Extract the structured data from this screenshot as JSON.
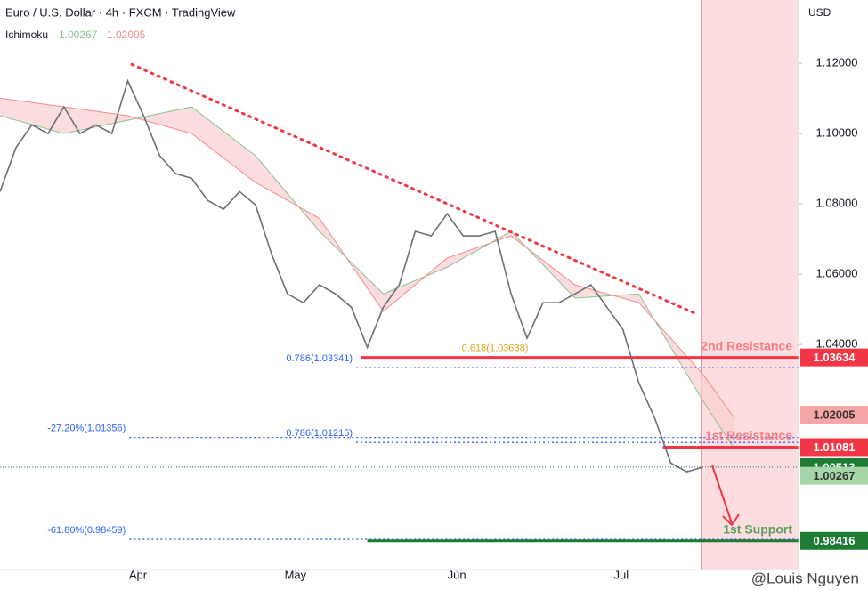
{
  "chart_data": {
    "type": "line",
    "title": "Euro / U.S. Dollar · 4h · FXCM · TradingView",
    "indicator": {
      "name": "Ichimoku",
      "values": [
        1.00267,
        1.02005
      ],
      "colors": [
        "#8bc28e",
        "#f28b8b"
      ]
    },
    "currency": "USD",
    "watermark": "@Louis Nguyen",
    "xlim": [
      0,
      50
    ],
    "ylim": [
      0.976,
      1.138
    ],
    "yticks": [
      {
        "value": 1.12,
        "label": "1.12000"
      },
      {
        "value": 1.1,
        "label": "1.10000"
      },
      {
        "value": 1.08,
        "label": "1.08000"
      },
      {
        "value": 1.06,
        "label": "1.06000"
      },
      {
        "value": 1.04,
        "label": "1.04000"
      }
    ],
    "xticks": [
      {
        "value": 8.64,
        "label": "Apr"
      },
      {
        "value": 18.5,
        "label": "May"
      },
      {
        "value": 28.6,
        "label": "Jun"
      },
      {
        "value": 38.9,
        "label": "Jul"
      }
    ],
    "series": [
      {
        "name": "EURUSD",
        "color": "#6b6f7a",
        "values": [
          1.0835,
          1.096,
          1.1025,
          1.1,
          1.1076,
          1.1,
          1.1025,
          1.1,
          1.115,
          1.105,
          1.0937,
          1.0886,
          1.0873,
          1.081,
          1.0785,
          1.0835,
          1.0797,
          1.0658,
          1.0544,
          1.0519,
          1.057,
          1.0544,
          1.0506,
          1.0392,
          1.0506,
          1.057,
          1.0722,
          1.0709,
          1.0772,
          1.0709,
          1.0709,
          1.0722,
          1.0544,
          1.0418,
          1.0519,
          1.0519,
          1.0544,
          1.057,
          1.0506,
          1.0443,
          1.0291,
          1.019,
          1.0063,
          1.0038,
          1.0051
        ]
      }
    ],
    "cloud": {
      "x": [
        0,
        4,
        8,
        12,
        16,
        20,
        24,
        28,
        32,
        36,
        40,
        44,
        46
      ],
      "span_a": [
        1.1051,
        1.1,
        1.1038,
        1.1076,
        1.0937,
        1.0722,
        1.0544,
        1.062,
        1.0722,
        1.0532,
        1.0544,
        1.0241,
        1.0101
      ],
      "span_b": [
        1.1101,
        1.1076,
        1.1051,
        1.1,
        1.0861,
        1.0759,
        1.0494,
        1.0646,
        1.0709,
        1.057,
        1.0519,
        1.0316,
        1.019
      ],
      "color_a": "#8bc28e",
      "color_b": "#f28b8b",
      "fill": "#f9cfcf"
    },
    "trendline": {
      "x": [
        8.25,
        43.5
      ],
      "values": [
        1.1197,
        1.0489
      ],
      "color": "#f23645"
    },
    "fibs": [
      {
        "label": "0.786(1.03341)",
        "value": 1.03341,
        "start": 22.3,
        "color": "#2962ff"
      },
      {
        "label": "-27.20%(1.01356)",
        "value": 1.01356,
        "start": 8.1,
        "color": "#2962ff"
      },
      {
        "label": "0.786(1.01215)",
        "value": 1.01215,
        "start": 22.3,
        "color": "#2962ff"
      },
      {
        "label": "-61.80%(0.98459)",
        "value": 0.98459,
        "start": 8.1,
        "color": "#2962ff"
      },
      {
        "label": "0.618(1.03638)",
        "value": 1.03638,
        "start": 33.3,
        "color": "#e8a317"
      }
    ],
    "levels": [
      {
        "label": "2nd Resistance",
        "value": 1.03634,
        "start": 22.6,
        "color": "#f23645",
        "text_color": "#f57f85"
      },
      {
        "label": "1st Resistance",
        "value": 1.01081,
        "start": 41.5,
        "color": "#f23645",
        "text_color": "#f57f85"
      },
      {
        "label": "1st Support",
        "value": 0.98416,
        "start": 23.0,
        "color": "#1e7b34",
        "text_color": "#5a9e5e"
      }
    ],
    "tags": [
      {
        "value": 1.03634,
        "color": "#f23645",
        "text_color": "#ffffff"
      },
      {
        "value": 1.02005,
        "color": "#f7a6a6",
        "text_color": "#333333"
      },
      {
        "value": 1.01081,
        "color": "#f23645",
        "text_color": "#ffffff"
      },
      {
        "value": 1.00513,
        "color": "#1e7b34",
        "text_color": "#ffffff",
        "dotted_line": true
      },
      {
        "value": 1.00267,
        "color": "#a5d6a7",
        "text_color": "#333333"
      },
      {
        "value": 0.98416,
        "color": "#1e7b34",
        "text_color": "#ffffff"
      }
    ]
  }
}
